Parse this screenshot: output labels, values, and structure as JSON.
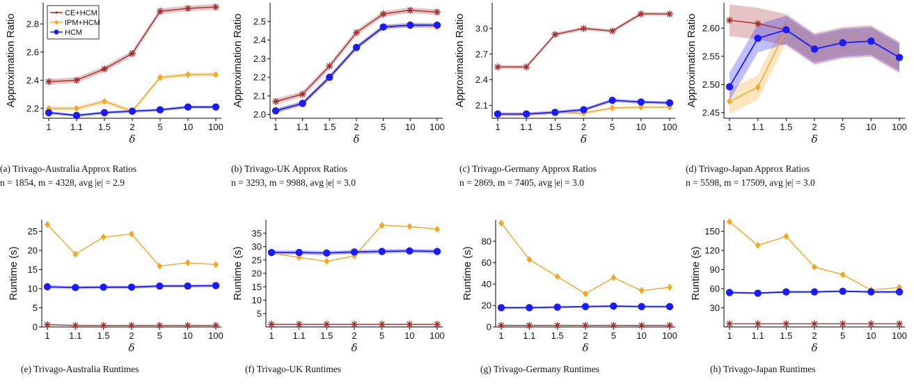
{
  "colors": {
    "ce": "#a52a2a",
    "ipm": "#f5a623",
    "hcm": "#1a1aff"
  },
  "legend": [
    "CE+HCM",
    "IPM+HCM",
    "HCM"
  ],
  "chart_data": [
    {
      "panel": "a",
      "type": "line",
      "caption": "(a)  Trivago-Australia Approx Ratios",
      "subcaption": "n = 1854, m = 4328, avg |e| = 2.9",
      "x": [
        "1",
        "1.1",
        "1.5",
        "2",
        "5",
        "10",
        "100"
      ],
      "xlabel": "δ",
      "ylabel": "Approximation Ratio",
      "ylim": [
        2.13,
        2.95
      ],
      "yticks": [
        "2.2",
        "2.4",
        "2.6",
        "2.8"
      ],
      "legend": "top-left",
      "series": [
        {
          "name": "CE+HCM",
          "marker": "star",
          "values": [
            2.39,
            2.4,
            2.48,
            2.59,
            2.89,
            2.91,
            2.92
          ],
          "band": 0.02
        },
        {
          "name": "IPM+HCM",
          "marker": "diamond",
          "values": [
            2.2,
            2.2,
            2.25,
            2.18,
            2.42,
            2.44,
            2.44
          ],
          "band": 0.015
        },
        {
          "name": "HCM",
          "marker": "circle",
          "values": [
            2.17,
            2.15,
            2.17,
            2.18,
            2.19,
            2.21,
            2.21
          ],
          "band": 0.01
        }
      ]
    },
    {
      "panel": "b",
      "type": "line",
      "caption": "(b)  Trivago-UK Approx Ratios",
      "subcaption": "n = 3293, m = 9988, avg |e| = 3.0",
      "x": [
        "1",
        "1.1",
        "1.5",
        "2",
        "5",
        "10",
        "100"
      ],
      "xlabel": "δ",
      "ylabel": "Approximation Ratio",
      "ylim": [
        1.98,
        2.6
      ],
      "yticks": [
        "2.0",
        "2.1",
        "2.2",
        "2.3",
        "2.4",
        "2.5"
      ],
      "series": [
        {
          "name": "CE+HCM",
          "marker": "star",
          "values": [
            2.07,
            2.11,
            2.26,
            2.44,
            2.54,
            2.56,
            2.55
          ],
          "band": 0.015
        },
        {
          "name": "IPM+HCM",
          "marker": "diamond",
          "values": [
            2.02,
            2.06,
            2.2,
            2.36,
            2.47,
            2.48,
            2.47
          ],
          "band": 0.012
        },
        {
          "name": "HCM",
          "marker": "circle",
          "values": [
            2.02,
            2.06,
            2.2,
            2.36,
            2.47,
            2.48,
            2.48
          ],
          "band": 0.012
        }
      ]
    },
    {
      "panel": "c",
      "type": "line",
      "caption": "(c)  Trivago-Germany Approx Ratios",
      "subcaption": "n = 2869, m = 7405, avg |e| = 3.0",
      "x": [
        "1",
        "1.1",
        "1.5",
        "2",
        "5",
        "10",
        "100"
      ],
      "xlabel": "δ",
      "ylabel": "Approximation Ratio",
      "ylim": [
        1.95,
        3.3
      ],
      "yticks": [
        "2.1",
        "2.4",
        "2.7",
        "3.0"
      ],
      "series": [
        {
          "name": "CE+HCM",
          "marker": "star",
          "values": [
            2.55,
            2.55,
            2.93,
            3.0,
            2.97,
            3.17,
            3.17
          ],
          "band": 0.02
        },
        {
          "name": "IPM+HCM",
          "marker": "diamond",
          "values": [
            1.99,
            1.99,
            2.02,
            2.01,
            2.07,
            2.08,
            2.08
          ],
          "band": 0.015
        },
        {
          "name": "HCM",
          "marker": "circle",
          "values": [
            2.0,
            2.0,
            2.02,
            2.05,
            2.16,
            2.14,
            2.13
          ],
          "band": 0.02
        }
      ]
    },
    {
      "panel": "d",
      "type": "line",
      "caption": "(d)  Trivago-Japan Approx Ratios",
      "subcaption": "n = 5598, m = 17509, avg |e| = 3.0",
      "x": [
        "1",
        "1.1",
        "1.5",
        "2",
        "5",
        "10",
        "100"
      ],
      "xlabel": "δ",
      "ylabel": "Approximation Ratio",
      "ylim": [
        2.44,
        2.645
      ],
      "yticks": [
        "2.45",
        "2.50",
        "2.55",
        "2.60"
      ],
      "series": [
        {
          "name": "CE+HCM",
          "marker": "star",
          "values": [
            2.614,
            2.608,
            2.597,
            2.563,
            2.574,
            2.577,
            2.548
          ],
          "band": 0.028
        },
        {
          "name": "IPM+HCM",
          "marker": "diamond",
          "values": [
            2.47,
            2.495,
            2.597,
            2.563,
            2.574,
            2.577,
            2.548
          ],
          "band": 0.022
        },
        {
          "name": "HCM",
          "marker": "circle",
          "values": [
            2.496,
            2.582,
            2.597,
            2.563,
            2.574,
            2.577,
            2.548
          ],
          "band": 0.025
        }
      ]
    },
    {
      "panel": "e",
      "type": "line",
      "caption": "(e)  Trivago-Australia Runtimes",
      "x": [
        "1",
        "1.1",
        "1.5",
        "2",
        "5",
        "10",
        "100"
      ],
      "xlabel": "δ",
      "ylabel": "Runtime (s)",
      "ylim": [
        0,
        28
      ],
      "yticks": [
        "0",
        "5",
        "10",
        "15",
        "20",
        "25"
      ],
      "series": [
        {
          "name": "CE+HCM",
          "marker": "star",
          "values": [
            0.6,
            0.4,
            0.4,
            0.4,
            0.4,
            0.4,
            0.4
          ],
          "band": 0
        },
        {
          "name": "IPM+HCM",
          "marker": "diamond",
          "values": [
            26.8,
            19.0,
            23.5,
            24.3,
            15.9,
            16.8,
            16.3
          ],
          "band": 0
        },
        {
          "name": "HCM",
          "marker": "circle",
          "values": [
            10.5,
            10.3,
            10.4,
            10.4,
            10.7,
            10.7,
            10.8
          ],
          "band": 0.4
        }
      ]
    },
    {
      "panel": "f",
      "type": "line",
      "caption": "(f)  Trivago-UK Runtimes",
      "x": [
        "1",
        "1.1",
        "1.5",
        "2",
        "5",
        "10",
        "100"
      ],
      "xlabel": "δ",
      "ylabel": "Runtime (s)",
      "ylim": [
        0,
        40
      ],
      "yticks": [
        "5",
        "10",
        "15",
        "20",
        "25",
        "30",
        "35"
      ],
      "series": [
        {
          "name": "CE+HCM",
          "marker": "star",
          "values": [
            1.0,
            1.0,
            1.0,
            1.0,
            1.0,
            1.0,
            1.0
          ],
          "band": 0
        },
        {
          "name": "IPM+HCM",
          "marker": "diamond",
          "values": [
            27.5,
            26.0,
            24.5,
            26.5,
            38.0,
            37.5,
            36.5
          ],
          "band": 0
        },
        {
          "name": "HCM",
          "marker": "circle",
          "values": [
            27.8,
            27.8,
            27.6,
            28.0,
            28.2,
            28.4,
            28.2
          ],
          "band": 0.8
        }
      ]
    },
    {
      "panel": "g",
      "type": "line",
      "caption": "(g)  Trivago-Germany Runtimes",
      "x": [
        "1",
        "1.1",
        "1.5",
        "2",
        "5",
        "10",
        "100"
      ],
      "xlabel": "δ",
      "ylabel": "Runtime (s)",
      "ylim": [
        0,
        100
      ],
      "yticks": [
        "0",
        "20",
        "40",
        "60",
        "80"
      ],
      "series": [
        {
          "name": "CE+HCM",
          "marker": "star",
          "values": [
            1.5,
            1.5,
            1.5,
            1.5,
            1.5,
            1.5,
            1.5
          ],
          "band": 0
        },
        {
          "name": "IPM+HCM",
          "marker": "diamond",
          "values": [
            97,
            63,
            47,
            31,
            46,
            34,
            37
          ],
          "band": 0
        },
        {
          "name": "HCM",
          "marker": "circle",
          "values": [
            18,
            18,
            18.5,
            19,
            19.5,
            19,
            19
          ],
          "band": 1.0
        }
      ]
    },
    {
      "panel": "h",
      "type": "line",
      "caption": "(h)  Trivago-Japan Runtimes",
      "x": [
        "1",
        "1.1",
        "1.5",
        "2",
        "5",
        "10",
        "100"
      ],
      "xlabel": "δ",
      "ylabel": "Runtime (s)",
      "ylim": [
        0,
        168
      ],
      "yticks": [
        "30",
        "60",
        "90",
        "120",
        "150"
      ],
      "series": [
        {
          "name": "CE+HCM",
          "marker": "star",
          "values": [
            5,
            5,
            5,
            5,
            5,
            5,
            5
          ],
          "band": 0
        },
        {
          "name": "IPM+HCM",
          "marker": "diamond",
          "values": [
            165,
            128,
            142,
            94,
            82,
            58,
            62
          ],
          "band": 0
        },
        {
          "name": "HCM",
          "marker": "circle",
          "values": [
            54,
            53,
            55,
            55,
            56,
            55,
            55
          ],
          "band": 1.5
        }
      ]
    }
  ]
}
